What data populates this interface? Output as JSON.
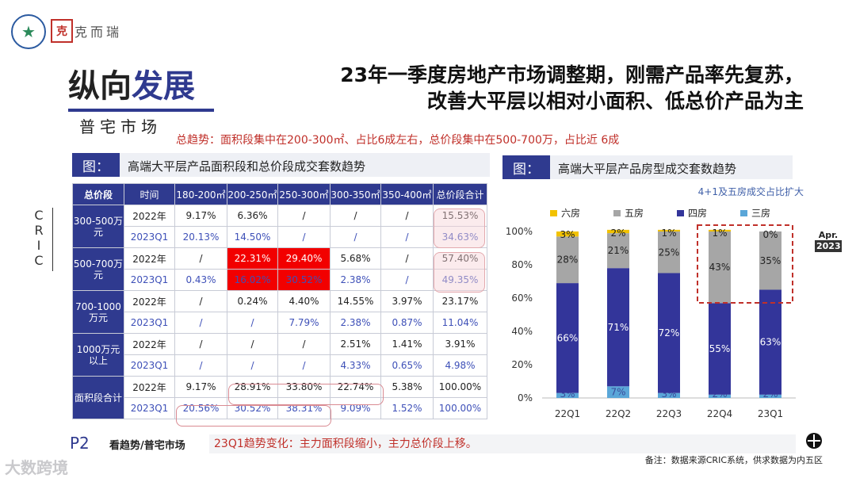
{
  "header": {
    "logo_glyph": "★",
    "seal_glyph": "克",
    "brand_text": "克而瑞"
  },
  "section": {
    "title_part1": "纵向",
    "title_part2": "发展",
    "subtitle": "普宅市场"
  },
  "headline": {
    "line1": "23年一季度房地产市场调整期，刚需产品率先复苏，",
    "line2": "改善大平层以相对小面积、低总价产品为主"
  },
  "trend": "总趋势：面积段集中在200-300㎡、占比6成左右，总价段集中在500-700万，占比近 6成",
  "side_label": "CRIC",
  "date_badge": {
    "month": "Apr.",
    "year": "2023"
  },
  "figure_left": {
    "tag": "图：",
    "title": "高端大平层产品面积段和总价段成交套数趋势"
  },
  "figure_right": {
    "tag": "图：",
    "title": "高端大平层产品房型成交套数趋势",
    "annotation": "4+1及五房成交占比扩大"
  },
  "table": {
    "headers": [
      "总价段",
      "时间",
      "180-200㎡",
      "200-250㎡",
      "250-300㎡",
      "300-350㎡",
      "350-400㎡",
      "总价段合计"
    ],
    "groups": [
      {
        "category": "300-500万元",
        "rows": [
          {
            "time": "2022年",
            "values": [
              "9.17%",
              "6.36%",
              "/",
              "/",
              "/",
              "15.53%"
            ]
          },
          {
            "time": "2023Q1",
            "values": [
              "20.13%",
              "14.50%",
              "/",
              "/",
              "/",
              "34.63%"
            ]
          }
        ]
      },
      {
        "category": "500-700万元",
        "rows": [
          {
            "time": "2022年",
            "values": [
              "/",
              "22.31%",
              "29.40%",
              "5.68%",
              "/",
              "57.40%"
            ]
          },
          {
            "time": "2023Q1",
            "values": [
              "0.43%",
              "16.02%",
              "30.52%",
              "2.38%",
              "/",
              "49.35%"
            ]
          }
        ]
      },
      {
        "category": "700-1000万元",
        "rows": [
          {
            "time": "2022年",
            "values": [
              "/",
              "0.24%",
              "4.40%",
              "14.55%",
              "3.97%",
              "23.17%"
            ]
          },
          {
            "time": "2023Q1",
            "values": [
              "/",
              "/",
              "7.79%",
              "2.38%",
              "0.87%",
              "11.04%"
            ]
          }
        ]
      },
      {
        "category": "1000万元以上",
        "rows": [
          {
            "time": "2022年",
            "values": [
              "/",
              "/",
              "/",
              "2.51%",
              "1.41%",
              "3.91%"
            ]
          },
          {
            "time": "2023Q1",
            "values": [
              "/",
              "/",
              "/",
              "4.33%",
              "0.65%",
              "4.98%"
            ]
          }
        ]
      },
      {
        "category": "面积段合计",
        "rows": [
          {
            "time": "2022年",
            "values": [
              "9.17%",
              "28.91%",
              "33.80%",
              "22.74%",
              "5.38%",
              "100.00%"
            ]
          },
          {
            "time": "2023Q1",
            "values": [
              "20.56%",
              "30.52%",
              "38.31%",
              "9.09%",
              "1.52%",
              "100.00%"
            ]
          }
        ]
      }
    ]
  },
  "chart_data": {
    "type": "bar",
    "stacked": true,
    "title": "高端大平层产品房型成交套数趋势",
    "categories": [
      "22Q1",
      "22Q2",
      "22Q3",
      "22Q4",
      "23Q1"
    ],
    "series": [
      {
        "name": "三房",
        "color": "#5aa6d8",
        "values": [
          3,
          7,
          3,
          2,
          2
        ],
        "labels": [
          "3%",
          "7%",
          "3%",
          "2%",
          "2%"
        ]
      },
      {
        "name": "四房",
        "color": "#33359a",
        "values": [
          66,
          71,
          72,
          55,
          63
        ],
        "labels": [
          "66%",
          "71%",
          "72%",
          "55%",
          "63%"
        ]
      },
      {
        "name": "五房",
        "color": "#a6a6a6",
        "values": [
          28,
          21,
          25,
          43,
          35
        ],
        "labels": [
          "28%",
          "21%",
          "25%",
          "43%",
          "35%"
        ]
      },
      {
        "name": "六房",
        "color": "#f2c200",
        "values": [
          3,
          2,
          1,
          1,
          0
        ],
        "labels": [
          "3%",
          "2%",
          "1%",
          "1%",
          "0%"
        ]
      }
    ],
    "legend_order": [
      "六房",
      "五房",
      "四房",
      "三房"
    ],
    "ylim": [
      0,
      100
    ],
    "yticks": [
      "0%",
      "20%",
      "40%",
      "60%",
      "80%",
      "100%"
    ],
    "highlight_categories": [
      "22Q4",
      "23Q1"
    ],
    "legend_position": "top"
  },
  "callout": "23Q1趋势变化：主力面积段缩小，主力总价段上移。",
  "footer": {
    "page_number": "P2",
    "page_section": "看趋势/普宅市场",
    "note": "备注：数据来源CRIC系统，供求数据为内五区",
    "watermark": "大数跨境"
  }
}
